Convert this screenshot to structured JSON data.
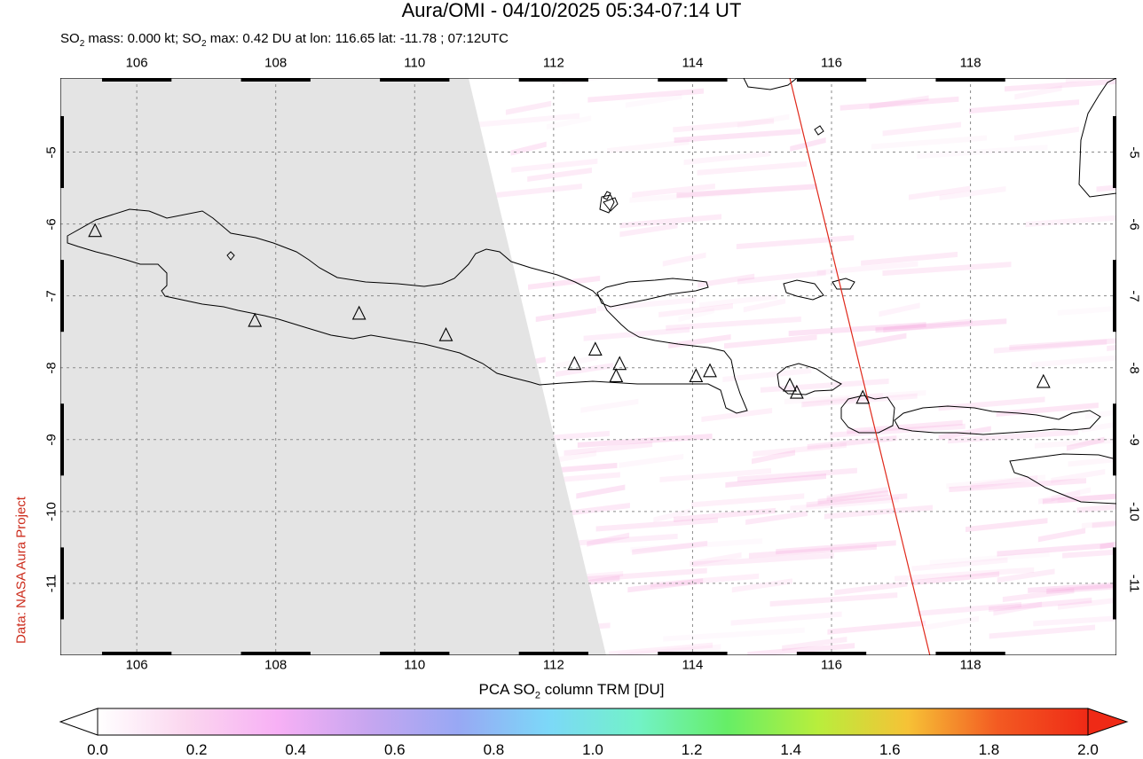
{
  "header": {
    "title": "Aura/OMI - 04/10/2025 05:34-07:14 UT",
    "subtitle_pre": "SO",
    "subtitle_sub": "2",
    "subtitle_mid": " mass: 0.000 kt; SO",
    "subtitle_sub2": "2",
    "subtitle_post": " max: 0.42 DU at lon: 116.65 lat: -11.78 ; 07:12UTC"
  },
  "credit": "Data: NASA Aura Project",
  "map": {
    "lon_range": [
      104.9,
      120.1
    ],
    "lat_range": [
      -12.0,
      -3.97
    ],
    "lon_ticks": [
      "106",
      "108",
      "110",
      "112",
      "114",
      "116",
      "118"
    ],
    "lat_ticks": [
      "-5",
      "-6",
      "-7",
      "-8",
      "-9",
      "-10",
      "-11"
    ],
    "no_data_color": "#e4e4e4",
    "orbit_line_color": "#e0281a",
    "volcano_icon": "triangle-outline",
    "volcanoes": [
      {
        "lon": 105.4,
        "lat": -6.1
      },
      {
        "lon": 107.7,
        "lat": -7.35
      },
      {
        "lon": 109.2,
        "lat": -7.25
      },
      {
        "lon": 110.45,
        "lat": -7.55
      },
      {
        "lon": 112.3,
        "lat": -7.95
      },
      {
        "lon": 112.6,
        "lat": -7.75
      },
      {
        "lon": 112.95,
        "lat": -7.95
      },
      {
        "lon": 112.9,
        "lat": -8.12
      },
      {
        "lon": 114.05,
        "lat": -8.12
      },
      {
        "lon": 114.25,
        "lat": -8.05
      },
      {
        "lon": 115.4,
        "lat": -8.25
      },
      {
        "lon": 115.5,
        "lat": -8.35
      },
      {
        "lon": 116.45,
        "lat": -8.42
      },
      {
        "lon": 119.05,
        "lat": -8.2
      }
    ]
  },
  "colorbar": {
    "label_pre": "PCA SO",
    "label_sub": "2",
    "label_post": " column TRM [DU]",
    "ticks": [
      "0.0",
      "0.2",
      "0.4",
      "0.6",
      "0.8",
      "1.0",
      "1.2",
      "1.4",
      "1.6",
      "1.8",
      "2.0"
    ],
    "colors": [
      "#ffffff",
      "#fbd6ef",
      "#f7b0f5",
      "#c7a6f0",
      "#98a8f4",
      "#7cd8f8",
      "#72f2c8",
      "#66ee66",
      "#b8ee3c",
      "#f6c236",
      "#f35a22",
      "#ef2a16"
    ]
  }
}
